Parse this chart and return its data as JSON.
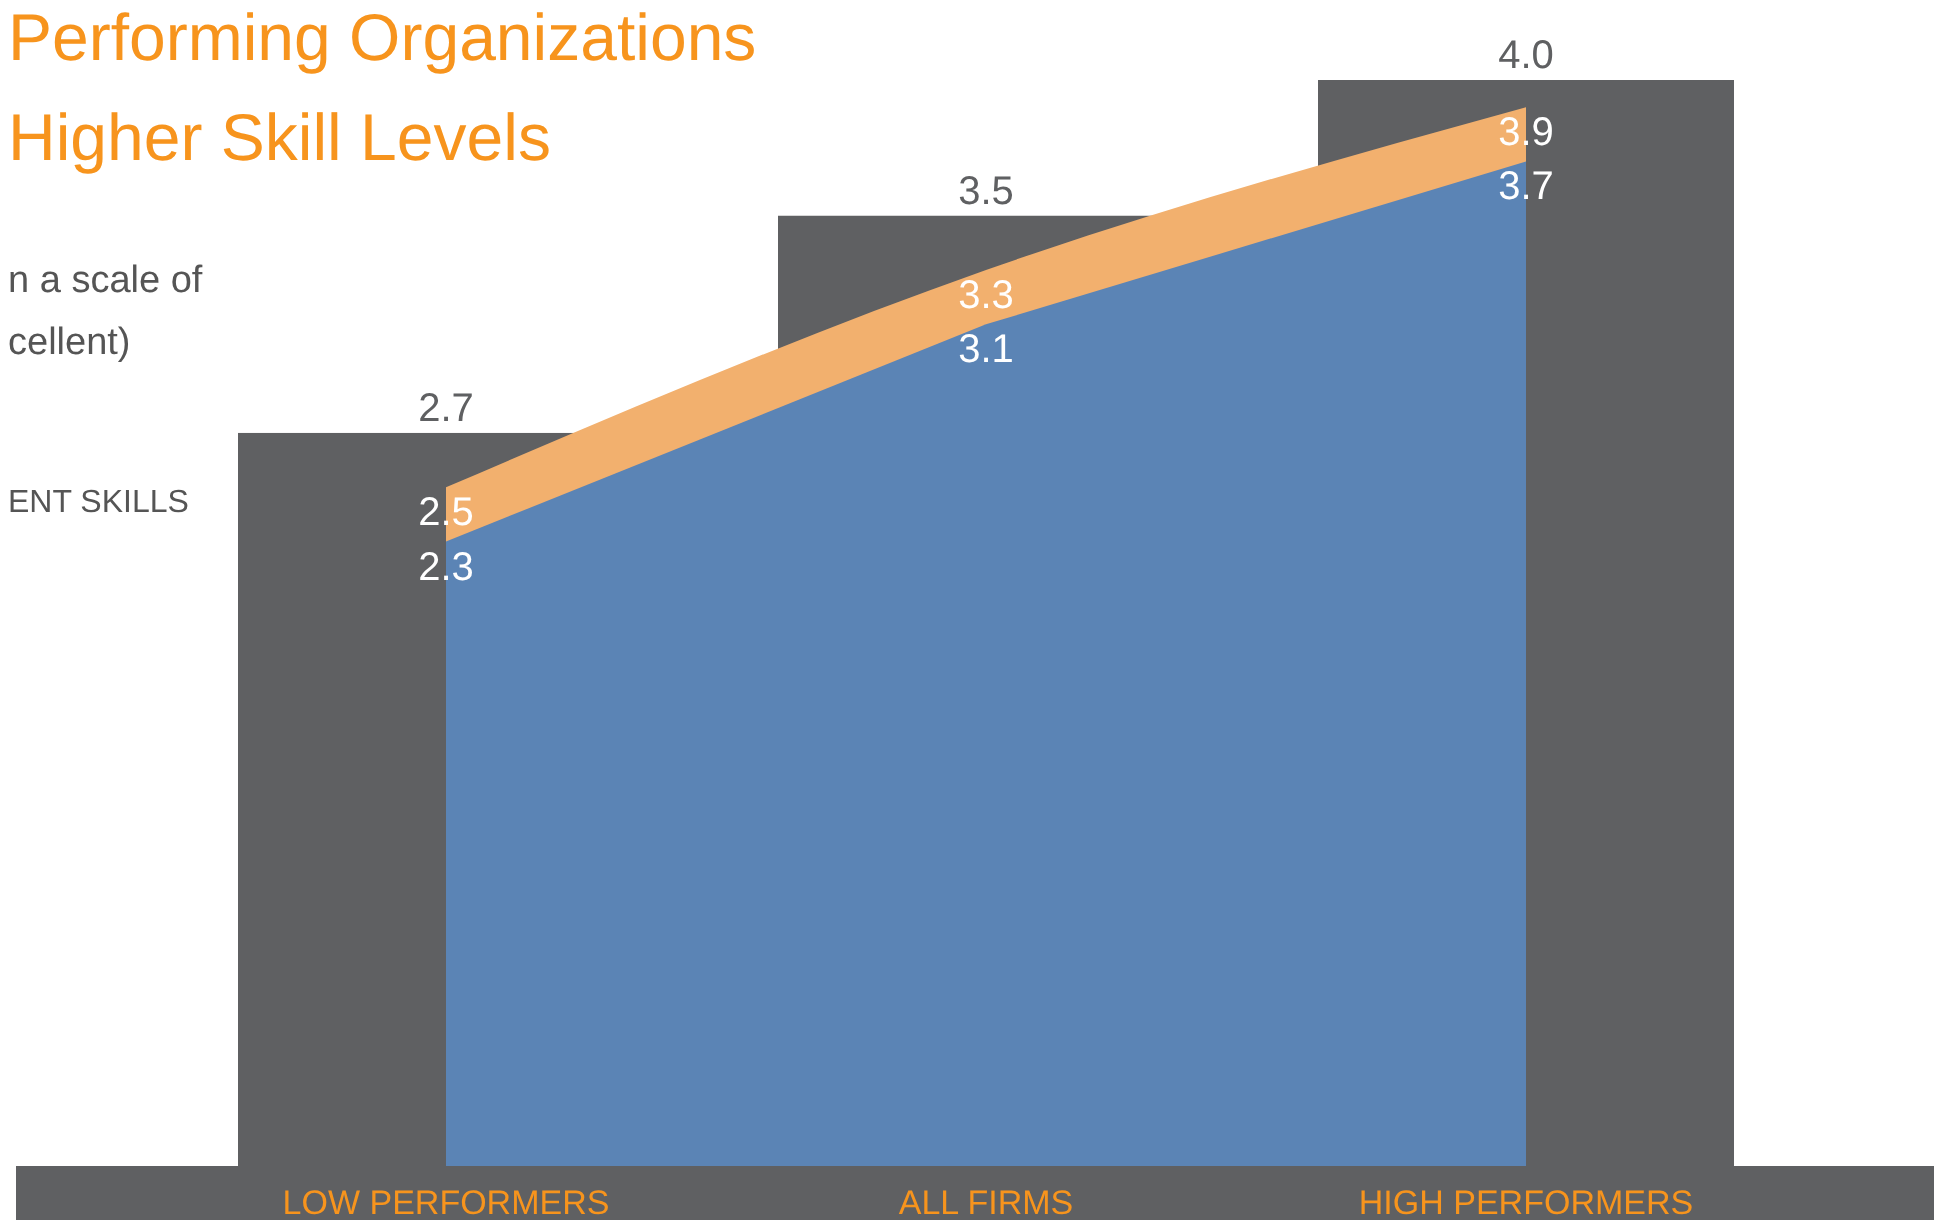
{
  "chart_data": {
    "type": "bar",
    "title": "Performing Organizations",
    "subtitle": "Higher Skill Levels",
    "annotations": [
      "n a scale of",
      "cellent)",
      "ENT SKILLS"
    ],
    "categories": [
      "LOW PERFORMERS",
      "ALL FIRMS",
      "HIGH PERFORMERS"
    ],
    "series": [
      {
        "type": "bar",
        "color": "#5f6062",
        "values": [
          2.7,
          3.5,
          4.0
        ],
        "value_labels": [
          "2.7",
          "3.5",
          "4.0"
        ]
      },
      {
        "type": "area",
        "color": "#f2b06e",
        "values": [
          2.5,
          3.3,
          3.9
        ],
        "value_labels": [
          "2.5",
          "3.3",
          "3.9"
        ]
      },
      {
        "type": "area",
        "color": "#5b84b5",
        "values": [
          2.3,
          3.1,
          3.7
        ],
        "value_labels": [
          "2.3",
          "3.1",
          "3.7"
        ]
      }
    ]
  }
}
